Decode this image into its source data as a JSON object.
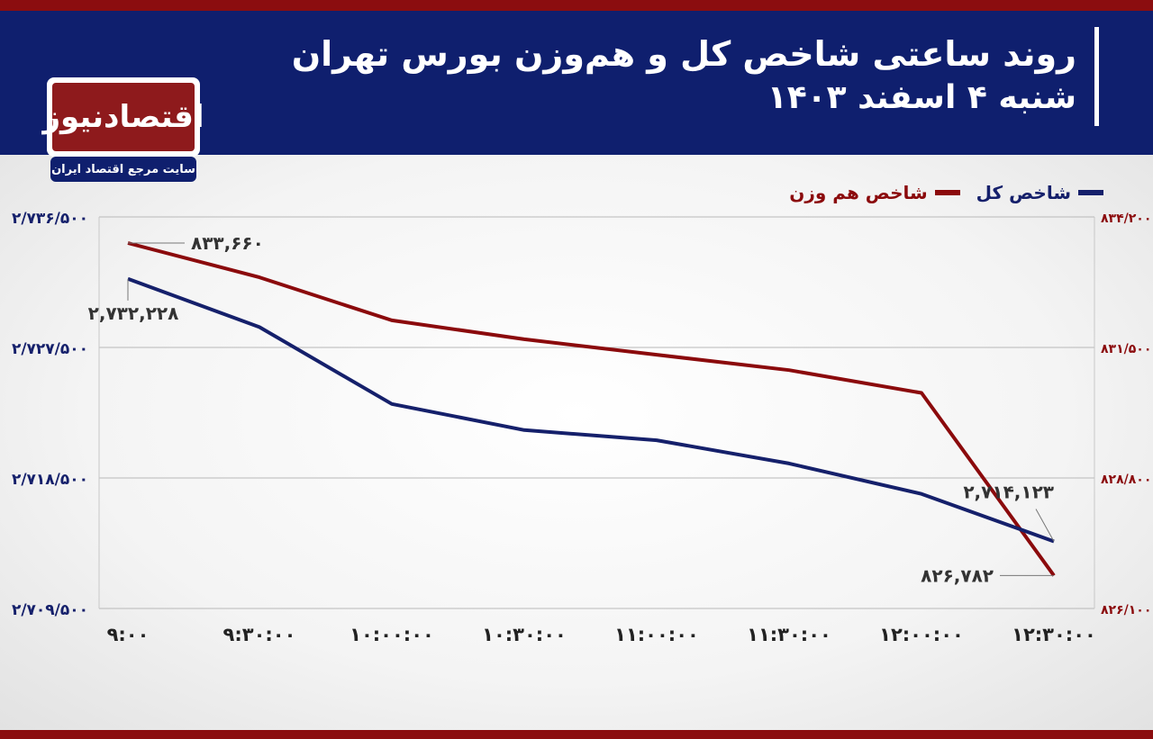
{
  "header": {
    "title": "روند ساعتی شاخص کل و هم‌وزن بورس تهران",
    "subtitle": "شنبه ۴ اسفند ۱۴۰۳"
  },
  "logo": {
    "name": "اقتصادنیوز",
    "tagline": "سایت مرجع اقتصاد ایران"
  },
  "colors": {
    "header_bg": "#0f1f6e",
    "accent_red": "#8b0d0f",
    "series_total": "#15206b",
    "series_equal": "#8b0a0c",
    "grid": "#b8b8b8"
  },
  "legend": {
    "total": "شاخص کل",
    "equal": "شاخص هم وزن"
  },
  "chart_data": {
    "type": "line",
    "x": [
      "9:00",
      "9:30:00",
      "10:00:00",
      "10:30:00",
      "11:00:00",
      "11:30:00",
      "12:00:00",
      "12:30:00"
    ],
    "x_tick_labels": [
      "۹:۰۰",
      "۹:۳۰:۰۰",
      "۱۰:۰۰:۰۰",
      "۱۰:۳۰:۰۰",
      "۱۱:۰۰:۰۰",
      "۱۱:۳۰:۰۰",
      "۱۲:۰۰:۰۰",
      "۱۲:۳۰:۰۰"
    ],
    "y_left": {
      "ylim": [
        2709500,
        2736500
      ],
      "ticks": [
        2709500,
        2718500,
        2727500,
        2736500
      ],
      "tick_labels": [
        "۲/۷۰۹/۵۰۰",
        "۲/۷۱۸/۵۰۰",
        "۲/۷۲۷/۵۰۰",
        "۲/۷۳۶/۵۰۰"
      ]
    },
    "y_right": {
      "ylim": [
        826100,
        834200
      ],
      "ticks": [
        826100,
        828800,
        831500,
        834200
      ],
      "tick_labels": [
        "۸۲۶/۱۰۰",
        "۸۲۸/۸۰۰",
        "۸۳۱/۵۰۰",
        "۸۳۴/۲۰۰"
      ]
    },
    "grid": true,
    "legend_position": "top-right",
    "series": [
      {
        "name": "شاخص کل",
        "axis": "left",
        "values": [
          2732228,
          2728900,
          2723600,
          2721800,
          2721100,
          2719500,
          2717400,
          2714123
        ]
      },
      {
        "name": "شاخص هم وزن",
        "axis": "right",
        "values": [
          833660,
          832950,
          832060,
          831670,
          831350,
          831030,
          830560,
          826782
        ]
      }
    ],
    "annotations": [
      {
        "series": 1,
        "index": 0,
        "text": "۸۳۳,۶۶۰"
      },
      {
        "series": 0,
        "index": 0,
        "text": "۲,۷۳۲,۲۲۸"
      },
      {
        "series": 0,
        "index": 7,
        "text": "۲,۷۱۴,۱۲۳"
      },
      {
        "series": 1,
        "index": 7,
        "text": "۸۲۶,۷۸۲"
      }
    ]
  }
}
